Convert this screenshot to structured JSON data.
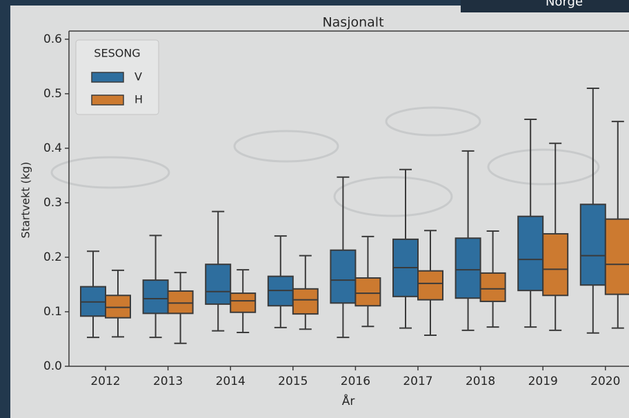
{
  "badge": "Norge",
  "chart_data": {
    "type": "box",
    "title": "Nasjonalt",
    "xlabel": "År",
    "ylabel": "Startvekt (kg)",
    "categories": [
      "2012",
      "2013",
      "2014",
      "2015",
      "2016",
      "2017",
      "2018",
      "2019",
      "2020"
    ],
    "legend_title": "SESONG",
    "legend": "upper left",
    "ylim": [
      0,
      0.615
    ],
    "yticks": [
      {
        "value": 0,
        "label": "0.0"
      },
      0.1,
      0.2,
      0.3,
      0.4,
      0.5,
      0.6
    ],
    "series": [
      {
        "name": "V",
        "color": "#2e6e9e",
        "values": [
          {
            "low": 0.053,
            "q1": 0.092,
            "median": 0.118,
            "q3": 0.146,
            "high": 0.211
          },
          {
            "low": 0.053,
            "q1": 0.097,
            "median": 0.124,
            "q3": 0.158,
            "high": 0.24
          },
          {
            "low": 0.065,
            "q1": 0.114,
            "median": 0.137,
            "q3": 0.187,
            "high": 0.284
          },
          {
            "low": 0.071,
            "q1": 0.111,
            "median": 0.139,
            "q3": 0.165,
            "high": 0.239
          },
          {
            "low": 0.053,
            "q1": 0.116,
            "median": 0.158,
            "q3": 0.213,
            "high": 0.347
          },
          {
            "low": 0.07,
            "q1": 0.128,
            "median": 0.181,
            "q3": 0.233,
            "high": 0.361
          },
          {
            "low": 0.066,
            "q1": 0.125,
            "median": 0.177,
            "q3": 0.235,
            "high": 0.395
          },
          {
            "low": 0.072,
            "q1": 0.139,
            "median": 0.196,
            "q3": 0.275,
            "high": 0.453
          },
          {
            "low": 0.061,
            "q1": 0.149,
            "median": 0.203,
            "q3": 0.297,
            "high": 0.51
          }
        ]
      },
      {
        "name": "H",
        "color": "#cc7a30",
        "values": [
          {
            "low": 0.054,
            "q1": 0.089,
            "median": 0.108,
            "q3": 0.13,
            "high": 0.176
          },
          {
            "low": 0.042,
            "q1": 0.097,
            "median": 0.116,
            "q3": 0.138,
            "high": 0.172
          },
          {
            "low": 0.062,
            "q1": 0.099,
            "median": 0.12,
            "q3": 0.134,
            "high": 0.177
          },
          {
            "low": 0.068,
            "q1": 0.096,
            "median": 0.122,
            "q3": 0.142,
            "high": 0.203
          },
          {
            "low": 0.073,
            "q1": 0.111,
            "median": 0.134,
            "q3": 0.162,
            "high": 0.238
          },
          {
            "low": 0.057,
            "q1": 0.122,
            "median": 0.152,
            "q3": 0.175,
            "high": 0.249
          },
          {
            "low": 0.072,
            "q1": 0.119,
            "median": 0.142,
            "q3": 0.171,
            "high": 0.248
          },
          {
            "low": 0.066,
            "q1": 0.13,
            "median": 0.178,
            "q3": 0.243,
            "high": 0.409
          },
          {
            "low": 0.07,
            "q1": 0.132,
            "median": 0.187,
            "q3": 0.27,
            "high": 0.449
          }
        ]
      }
    ]
  }
}
